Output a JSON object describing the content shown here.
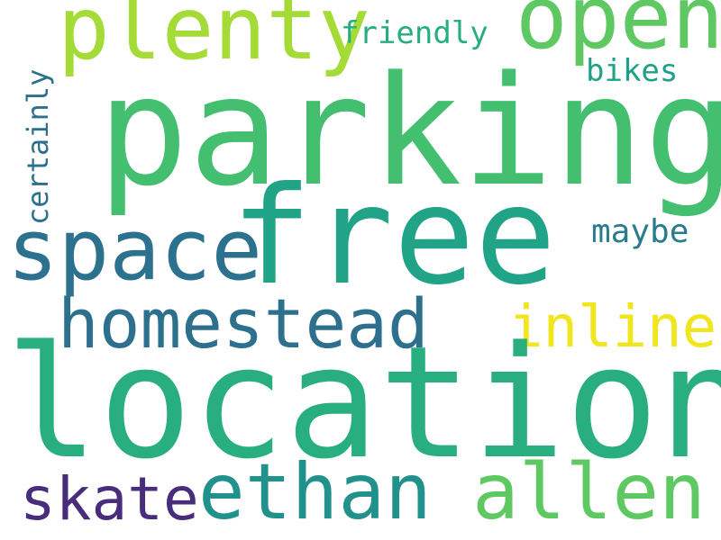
{
  "word_cloud": {
    "words": {
      "parking": {
        "text": "parking",
        "color": "#44bf70"
      },
      "location": {
        "text": "location",
        "color": "#29af7f"
      },
      "free": {
        "text": "free",
        "color": "#20a386"
      },
      "plenty": {
        "text": "plenty",
        "color": "#a5db36"
      },
      "open": {
        "text": "open",
        "color": "#5ec962"
      },
      "space": {
        "text": "space",
        "color": "#2c728e"
      },
      "homestead": {
        "text": "homestead",
        "color": "#2d708e"
      },
      "inline": {
        "text": "inline",
        "color": "#f1e51d"
      },
      "skate": {
        "text": "skate",
        "color": "#472d7b"
      },
      "ethan": {
        "text": "ethan",
        "color": "#21918c"
      },
      "allen": {
        "text": "allen",
        "color": "#5ec962"
      },
      "friendly": {
        "text": "friendly",
        "color": "#26ad81"
      },
      "bikes": {
        "text": "bikes",
        "color": "#1fa187"
      },
      "maybe": {
        "text": "maybe",
        "color": "#287c8e"
      },
      "certainly": {
        "text": "certainly",
        "color": "#2d708e",
        "orientation": "vertical"
      }
    }
  }
}
